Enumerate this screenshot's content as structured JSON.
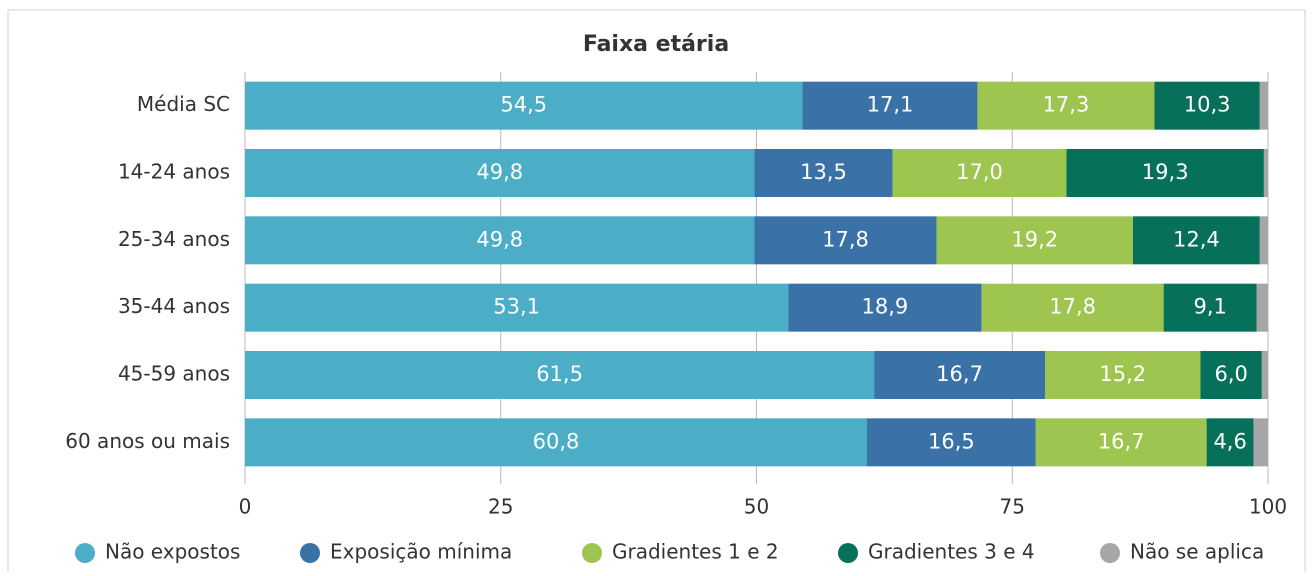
{
  "chart_data": {
    "type": "stacked-bar-horizontal",
    "title": "Faixa etária",
    "categories": [
      "Média SC",
      "14-24 anos",
      "25-34 anos",
      "35-44 anos",
      "45-59 anos",
      "60 anos ou mais"
    ],
    "series": [
      {
        "name": "Não expostos",
        "color": "#4badc6",
        "values": [
          54.5,
          49.8,
          49.8,
          53.1,
          61.5,
          60.8
        ],
        "value_labels": [
          "54,5",
          "49,8",
          "49,8",
          "53,1",
          "61,5",
          "60,8"
        ]
      },
      {
        "name": "Exposição mínima",
        "color": "#3a72a8",
        "values": [
          17.1,
          13.5,
          17.8,
          18.9,
          16.7,
          16.5
        ],
        "value_labels": [
          "17,1",
          "13,5",
          "17,8",
          "18,9",
          "16,7",
          "16,5"
        ]
      },
      {
        "name": "Gradientes 1 e 2",
        "color": "#9dc54f",
        "values": [
          17.3,
          17.0,
          19.2,
          17.8,
          15.2,
          16.7
        ],
        "value_labels": [
          "17,3",
          "17,0",
          "19,2",
          "17,8",
          "15,2",
          "16,7"
        ]
      },
      {
        "name": "Gradientes 3 e 4",
        "color": "#07705a",
        "values": [
          10.3,
          19.3,
          12.4,
          9.1,
          6.0,
          4.6
        ],
        "value_labels": [
          "10,3",
          "19,3",
          "12,4",
          "9,1",
          "6,0",
          "4,6"
        ]
      },
      {
        "name": "Não se aplica",
        "color": "#a6a6a6",
        "values": [
          0.8,
          0.4,
          0.8,
          1.1,
          0.6,
          1.4
        ]
      }
    ],
    "xlim": [
      0,
      100
    ],
    "xticks": [
      0,
      25,
      50,
      75,
      100
    ],
    "grid": true,
    "legend": "bottom"
  }
}
